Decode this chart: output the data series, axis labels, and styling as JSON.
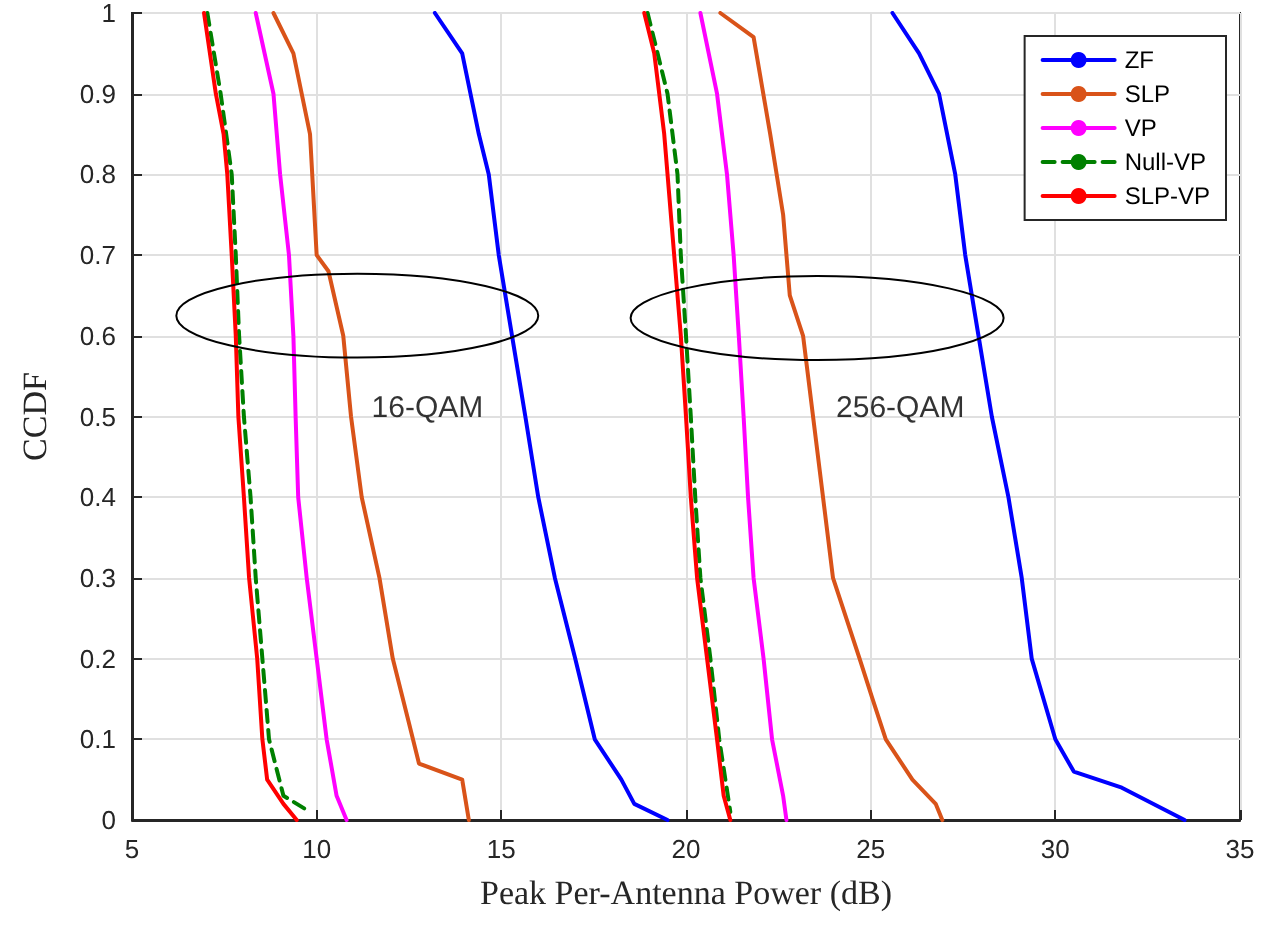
{
  "chart_data": {
    "type": "line",
    "xlabel": "Peak Per-Antenna Power (dB)",
    "ylabel": "CCDF",
    "xlim": [
      5,
      35
    ],
    "xticks": [
      5,
      10,
      15,
      20,
      25,
      30,
      35
    ],
    "ylim": [
      0,
      1
    ],
    "yticks": [
      0,
      0.1,
      0.2,
      0.3,
      0.4,
      0.5,
      0.6,
      0.7,
      0.8,
      0.9,
      1
    ],
    "grid": true,
    "legend": "top right",
    "marker": "none",
    "annotations": [
      "16-QAM",
      "256-QAM"
    ],
    "series": [
      {
        "name": "ZF",
        "color": "#0000ff",
        "line_style": "solid",
        "x": [
          13.2,
          13.94,
          14.39,
          14.66,
          14.93,
          15.29,
          15.47,
          15.65,
          16.0,
          16.45,
          17.0,
          17.53,
          18.25,
          18.6,
          19.5,
          null,
          25.59,
          26.31,
          26.85,
          27.29,
          27.56,
          27.92,
          28.28,
          28.73,
          29.09,
          29.36,
          30.0,
          30.5,
          31.8,
          33.5
        ],
        "values": [
          1,
          0.95,
          0.85,
          0.8,
          0.7,
          0.6,
          0.55,
          0.5,
          0.4,
          0.3,
          0.2,
          0.1,
          0.05,
          0.02,
          0,
          null,
          1,
          0.95,
          0.9,
          0.8,
          0.7,
          0.6,
          0.5,
          0.4,
          0.3,
          0.2,
          0.1,
          0.06,
          0.04,
          0
        ]
      },
      {
        "name": "SLP",
        "color": "#d95319",
        "line_style": "solid",
        "x": [
          8.83,
          9.37,
          9.82,
          10.0,
          10.32,
          10.72,
          10.93,
          11.22,
          11.7,
          12.06,
          12.5,
          12.77,
          13.94,
          14.12,
          null,
          20.93,
          21.83,
          22.28,
          22.63,
          22.81,
          23.17,
          23.44,
          23.71,
          23.98,
          24.7,
          25.05,
          25.41,
          26.13,
          26.76,
          26.94
        ],
        "values": [
          1,
          0.95,
          0.85,
          0.7,
          0.68,
          0.6,
          0.5,
          0.4,
          0.3,
          0.2,
          0.12,
          0.07,
          0.05,
          0,
          null,
          1,
          0.97,
          0.85,
          0.75,
          0.65,
          0.6,
          0.5,
          0.4,
          0.3,
          0.2,
          0.15,
          0.1,
          0.05,
          0.02,
          0
        ]
      },
      {
        "name": "VP",
        "color": "#ff00ff",
        "line_style": "solid",
        "x": [
          8.35,
          8.83,
          9.01,
          9.25,
          9.37,
          9.43,
          9.5,
          9.73,
          10.0,
          10.27,
          10.54,
          10.81,
          null,
          20.39,
          20.84,
          21.11,
          21.29,
          21.43,
          21.56,
          21.68,
          21.83,
          22.1,
          22.33,
          22.63,
          22.72
        ],
        "values": [
          1,
          0.9,
          0.8,
          0.7,
          0.6,
          0.5,
          0.4,
          0.3,
          0.2,
          0.1,
          0.03,
          0,
          null,
          1,
          0.9,
          0.8,
          0.7,
          0.6,
          0.5,
          0.4,
          0.3,
          0.2,
          0.1,
          0.03,
          0
        ]
      },
      {
        "name": "Null-VP",
        "color": "#008000",
        "line_style": "dashed",
        "x": [
          7.04,
          7.4,
          7.7,
          7.81,
          7.9,
          8.03,
          8.21,
          8.35,
          8.53,
          8.71,
          9.1,
          9.82,
          null,
          18.96,
          19.5,
          19.77,
          19.86,
          20.0,
          20.13,
          20.25,
          20.39,
          20.66,
          20.9,
          21.2
        ],
        "values": [
          1,
          0.9,
          0.8,
          0.7,
          0.6,
          0.5,
          0.4,
          0.3,
          0.2,
          0.1,
          0.03,
          0.01,
          null,
          1,
          0.9,
          0.8,
          0.7,
          0.6,
          0.5,
          0.4,
          0.3,
          0.2,
          0.1,
          0.01
        ]
      },
      {
        "name": "SLP-VP",
        "color": "#ff0000",
        "line_style": "solid",
        "x": [
          6.95,
          7.27,
          7.48,
          7.58,
          7.7,
          7.81,
          7.88,
          8.03,
          8.17,
          8.39,
          8.53,
          8.66,
          9.1,
          9.46,
          null,
          18.87,
          19.14,
          19.41,
          19.68,
          19.86,
          20.0,
          20.13,
          20.3,
          20.57,
          20.84,
          21.02,
          21.2
        ],
        "values": [
          1,
          0.9,
          0.85,
          0.8,
          0.7,
          0.6,
          0.5,
          0.4,
          0.3,
          0.2,
          0.1,
          0.05,
          0.02,
          0,
          null,
          1,
          0.95,
          0.85,
          0.7,
          0.6,
          0.5,
          0.4,
          0.3,
          0.2,
          0.1,
          0.03,
          0
        ]
      }
    ]
  }
}
